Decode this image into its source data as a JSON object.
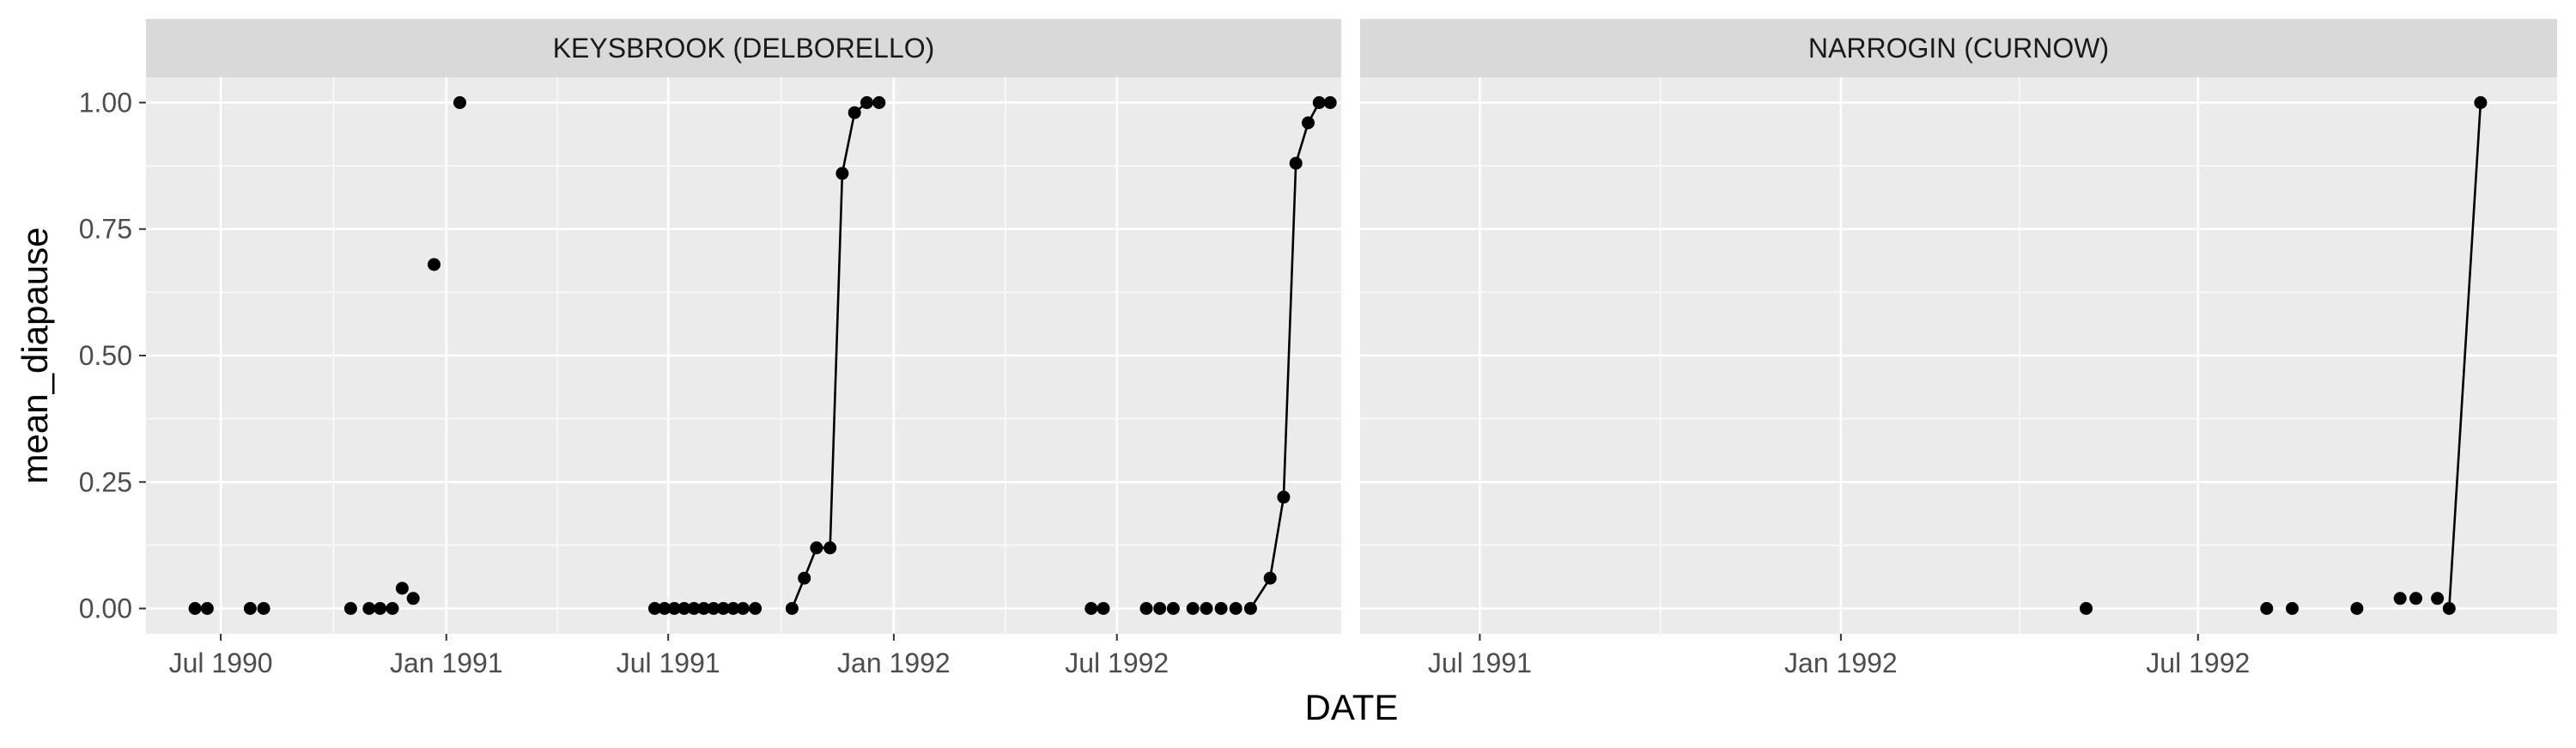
{
  "chart_data": {
    "type": "line",
    "xlabel": "DATE",
    "ylabel": "mean_diapause",
    "ylim": [
      -0.05,
      1.05
    ],
    "y_ticks": [
      0,
      0.25,
      0.5,
      0.75,
      1.0
    ],
    "y_tick_labels": [
      "0.00",
      "0.25",
      "0.50",
      "0.75",
      "1.00"
    ],
    "grid": true,
    "panels": [
      {
        "strip_label": "KEYSBROOK (DELBORELLO)",
        "xlim": [
          "1990-05-01",
          "1992-12-31"
        ],
        "x_ticks": [
          "1990-07-01",
          "1991-01-01",
          "1991-07-01",
          "1992-01-01",
          "1992-07-01"
        ],
        "x_tick_labels": [
          "Jul 1990",
          "Jan 1991",
          "Jul 1991",
          "Jan 1992",
          "Jul 1992"
        ],
        "points": [
          [
            "1990-06-10",
            0
          ],
          [
            "1990-06-20",
            0
          ],
          [
            "1990-07-25",
            0
          ],
          [
            "1990-08-05",
            0
          ],
          [
            "1990-10-15",
            0
          ],
          [
            "1990-10-30",
            0
          ],
          [
            "1990-11-08",
            0
          ],
          [
            "1990-11-18",
            0
          ],
          [
            "1990-11-26",
            0.04
          ],
          [
            "1990-12-05",
            0.02
          ],
          [
            "1990-12-22",
            0.68
          ],
          [
            "1991-01-12",
            1.0
          ],
          [
            "1991-06-20",
            0
          ],
          [
            "1991-06-28",
            0
          ],
          [
            "1991-07-06",
            0
          ],
          [
            "1991-07-14",
            0
          ],
          [
            "1991-07-22",
            0
          ],
          [
            "1991-07-30",
            0
          ],
          [
            "1991-08-07",
            0
          ],
          [
            "1991-08-15",
            0
          ],
          [
            "1991-08-23",
            0
          ],
          [
            "1991-08-31",
            0
          ],
          [
            "1991-09-10",
            0
          ],
          [
            "1991-10-10",
            0
          ],
          [
            "1991-10-20",
            0.06
          ],
          [
            "1991-10-30",
            0.12
          ],
          [
            "1991-11-10",
            0.12
          ],
          [
            "1991-11-20",
            0.86
          ],
          [
            "1991-11-30",
            0.98
          ],
          [
            "1991-12-10",
            1.0
          ],
          [
            "1991-12-20",
            1.0
          ],
          [
            "1992-06-10",
            0
          ],
          [
            "1992-06-20",
            0
          ],
          [
            "1992-07-25",
            0
          ],
          [
            "1992-08-05",
            0
          ],
          [
            "1992-08-16",
            0
          ],
          [
            "1992-09-01",
            0
          ],
          [
            "1992-09-12",
            0
          ],
          [
            "1992-09-24",
            0
          ],
          [
            "1992-10-06",
            0
          ],
          [
            "1992-10-18",
            0
          ],
          [
            "1992-11-03",
            0.06
          ],
          [
            "1992-11-14",
            0.22
          ],
          [
            "1992-11-24",
            0.88
          ],
          [
            "1992-12-04",
            0.96
          ],
          [
            "1992-12-13",
            1.0
          ],
          [
            "1992-12-22",
            1.0
          ]
        ],
        "line_segments": [
          [
            "1991-10-10",
            "1991-12-20"
          ],
          [
            "1992-10-18",
            "1992-12-22"
          ]
        ]
      },
      {
        "strip_label": "NARROGIN (CURNOW)",
        "xlim": [
          "1991-05-01",
          "1992-12-31"
        ],
        "x_ticks": [
          "1991-07-01",
          "1992-01-01",
          "1992-07-01"
        ],
        "x_tick_labels": [
          "Jul 1991",
          "Jan 1992",
          "Jul 1992"
        ],
        "points": [
          [
            "1992-05-05",
            0
          ],
          [
            "1992-08-05",
            0
          ],
          [
            "1992-08-18",
            0
          ],
          [
            "1992-09-20",
            0
          ],
          [
            "1992-10-12",
            0.02
          ],
          [
            "1992-10-20",
            0.02
          ],
          [
            "1992-10-31",
            0.02
          ],
          [
            "1992-11-06",
            0
          ],
          [
            "1992-11-22",
            1.0
          ]
        ],
        "line_segments": [
          [
            "1992-11-06",
            "1992-11-22"
          ]
        ]
      }
    ]
  }
}
